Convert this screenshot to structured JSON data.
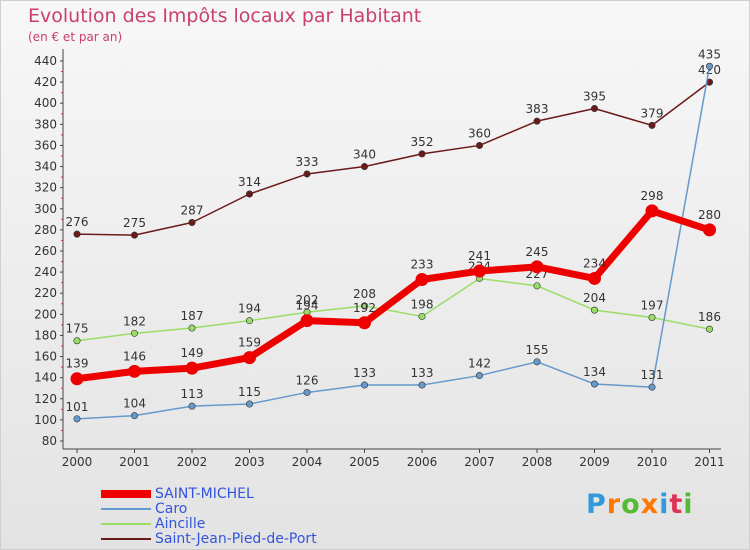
{
  "header": {
    "title": "Evolution des Impôts locaux par Habitant",
    "subtitle": "(en € et par an)"
  },
  "chart_data": {
    "type": "line",
    "title": "Evolution des Impôts locaux par Habitant",
    "subtitle": "(en € et par an)",
    "xlabel": "",
    "ylabel": "",
    "x": [
      "2000",
      "2001",
      "2002",
      "2003",
      "2004",
      "2005",
      "2006",
      "2007",
      "2008",
      "2009",
      "2010",
      "2011"
    ],
    "ylim": [
      80,
      440
    ],
    "yticks": [
      80,
      100,
      120,
      140,
      160,
      180,
      200,
      220,
      240,
      260,
      280,
      300,
      320,
      340,
      360,
      380,
      400,
      420,
      440
    ],
    "grid": false,
    "legend_position": "bottom-left",
    "series": [
      {
        "name": "Saint-Jean-Pied-de-Port",
        "color": "#6b1a1a",
        "emphasis": false,
        "values": [
          276,
          275,
          287,
          314,
          333,
          340,
          352,
          360,
          383,
          395,
          379,
          420
        ]
      },
      {
        "name": "Aincille",
        "color": "#99dd66",
        "emphasis": false,
        "values": [
          175,
          182,
          187,
          194,
          202,
          208,
          198,
          234,
          227,
          204,
          197,
          186
        ]
      },
      {
        "name": "Caro",
        "color": "#6699cc",
        "emphasis": false,
        "values": [
          101,
          104,
          113,
          115,
          126,
          133,
          133,
          142,
          155,
          134,
          131,
          435
        ]
      },
      {
        "name": "SAINT-MICHEL",
        "color": "#ee0000",
        "emphasis": true,
        "values": [
          139,
          146,
          149,
          159,
          194,
          192,
          233,
          241,
          245,
          234,
          298,
          280
        ]
      }
    ],
    "legend_order": [
      "SAINT-MICHEL",
      "Caro",
      "Aincille",
      "Saint-Jean-Pied-de-Port"
    ]
  },
  "logo": {
    "letters": [
      "P",
      "r",
      "o",
      "x",
      "i",
      "t",
      "i"
    ],
    "colors": [
      "#3399dd",
      "#ff7700",
      "#55bb33",
      "#ff7700",
      "#3399dd",
      "#dd3355",
      "#55bb33"
    ]
  }
}
